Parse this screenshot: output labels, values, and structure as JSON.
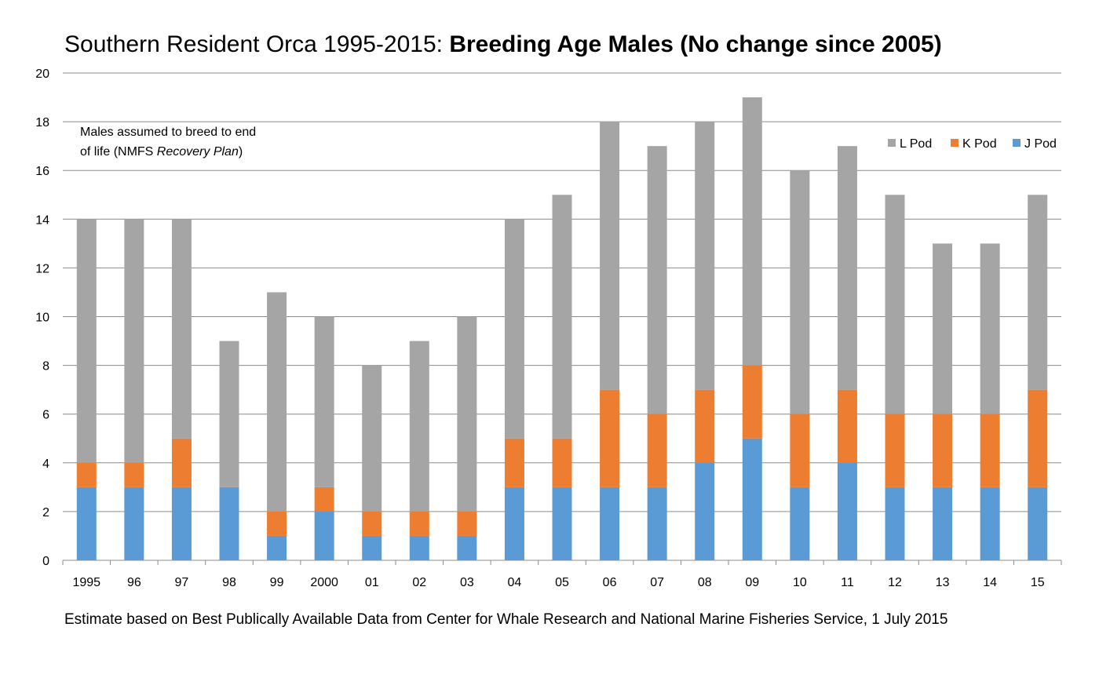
{
  "chart_data": {
    "type": "bar",
    "stacked": true,
    "title": {
      "prefix": "Southern Resident Orca 1995-2015: ",
      "bold": "Breeding Age Males (No change since 2005)"
    },
    "xlabel": "",
    "ylabel": "",
    "ylim": [
      0,
      20
    ],
    "yticks": [
      "0",
      "2",
      "4",
      "6",
      "8",
      "10",
      "12",
      "14",
      "16",
      "18",
      "20"
    ],
    "grid": true,
    "legend_position": "top-right",
    "categories": [
      "1995",
      "96",
      "97",
      "98",
      "99",
      "2000",
      "01",
      "02",
      "03",
      "04",
      "05",
      "06",
      "07",
      "08",
      "09",
      "10",
      "11",
      "12",
      "13",
      "14",
      "15"
    ],
    "series": [
      {
        "name": "J Pod",
        "color": "#5b9bd5",
        "values": [
          3,
          3,
          3,
          3,
          1,
          2,
          1,
          1,
          1,
          3,
          3,
          3,
          3,
          4,
          5,
          3,
          4,
          3,
          3,
          3,
          3
        ]
      },
      {
        "name": "K Pod",
        "color": "#ed7d31",
        "values": [
          1,
          1,
          2,
          0,
          1,
          1,
          1,
          1,
          1,
          2,
          2,
          4,
          3,
          3,
          3,
          3,
          3,
          3,
          3,
          3,
          4
        ]
      },
      {
        "name": "L Pod",
        "color": "#a5a5a5",
        "values": [
          10,
          10,
          9,
          6,
          9,
          7,
          6,
          7,
          8,
          9,
          10,
          11,
          11,
          11,
          11,
          10,
          10,
          9,
          7,
          7,
          8
        ]
      }
    ],
    "legend_order": [
      "L Pod",
      "K Pod",
      "J Pod"
    ],
    "annotation": {
      "line1": "Males assumed to breed to end",
      "line2_prefix": "of life (NMFS ",
      "line2_italic": "Recovery Plan",
      "line2_suffix": ")"
    },
    "footnote": "Estimate based on Best Publically Available Data from Center for Whale Research and National Marine Fisheries Service, 1 July 2015"
  }
}
